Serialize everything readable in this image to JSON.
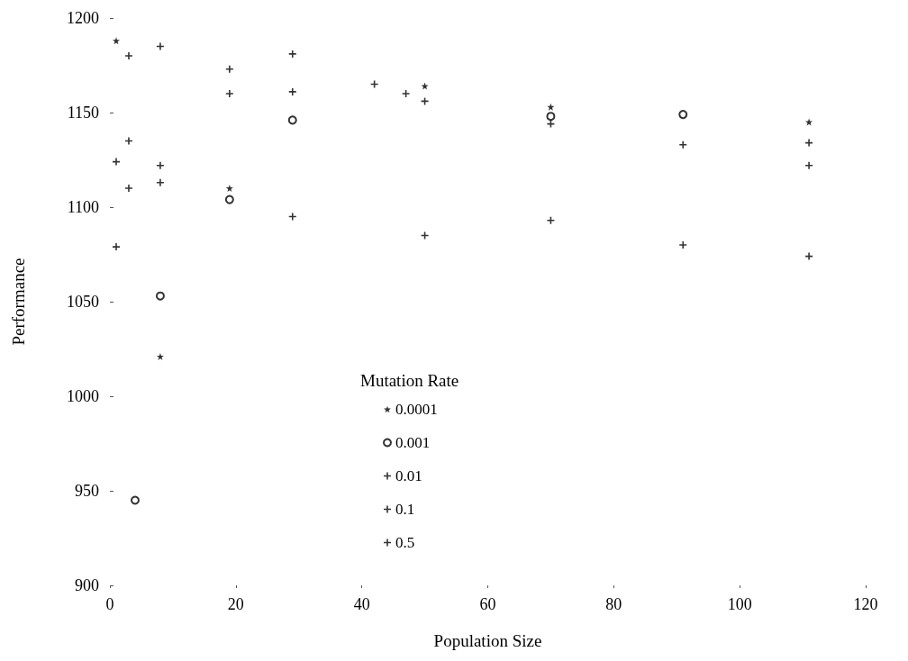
{
  "chart_data": {
    "type": "scatter",
    "xlabel": "Population Size",
    "ylabel": "Performance",
    "legend_title": "Mutation Rate",
    "xlim": [
      0,
      120
    ],
    "xticks": [
      0,
      20,
      40,
      60,
      80,
      100,
      120
    ],
    "ylim": [
      900,
      1200
    ],
    "yticks": [
      900,
      950,
      1000,
      1050,
      1100,
      1150,
      1200
    ],
    "grid": false,
    "legend": "bottom",
    "series": [
      {
        "name": "0.0001",
        "color": "#000000",
        "marker": "star",
        "x": [
          1,
          8,
          19,
          50,
          70,
          111
        ],
        "values": [
          1188,
          1021,
          1110,
          1164,
          1153,
          1145
        ]
      },
      {
        "name": "0.001",
        "color": "#000000",
        "marker": "circle",
        "x": [
          4,
          8,
          19,
          29,
          70,
          91
        ],
        "values": [
          945,
          1053,
          1104,
          1146,
          1148,
          1149
        ]
      },
      {
        "name": "0.01",
        "color": "#000000",
        "marker": "cross",
        "x": [
          1,
          3,
          8,
          19,
          29,
          42,
          50,
          70,
          91,
          111
        ],
        "values": [
          1124,
          1135,
          1122,
          1160,
          1161,
          1165,
          1156,
          1144,
          1133,
          1134
        ]
      },
      {
        "name": "0.1",
        "color": "#000000",
        "marker": "cross",
        "x": [
          1,
          3,
          8,
          19,
          29,
          47,
          111
        ],
        "values": [
          1079,
          1110,
          1113,
          1173,
          1181,
          1160,
          1122
        ]
      },
      {
        "name": "0.5",
        "color": "#000000",
        "marker": "cross",
        "x": [
          3,
          8,
          29,
          50,
          70,
          91,
          111
        ],
        "values": [
          1180,
          1185,
          1095,
          1085,
          1093,
          1080,
          1074
        ]
      }
    ]
  }
}
